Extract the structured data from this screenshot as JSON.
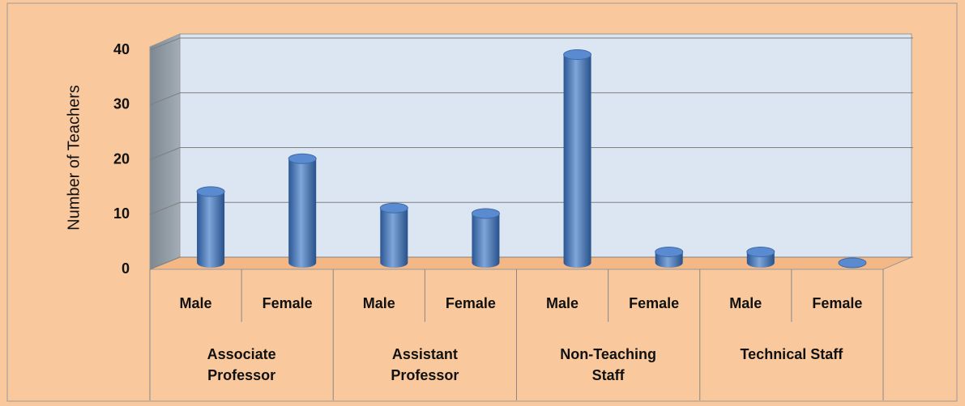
{
  "chart_data": {
    "type": "bar3d",
    "y_label": "Number of Teachers",
    "categories": [
      "Male",
      "Female",
      "Male",
      "Female",
      "Male",
      "Female",
      "Male",
      "Female"
    ],
    "groups": [
      "Associate Professor",
      "Assistant Professor",
      "Non-Teaching Staff",
      "Technical Staff"
    ],
    "values": [
      13,
      19,
      10,
      9,
      38,
      2,
      2,
      0
    ],
    "color": "#4f81bd",
    "ylim": [
      0,
      40
    ],
    "yticks": [
      0,
      10,
      20,
      30,
      40
    ],
    "grid": true
  }
}
